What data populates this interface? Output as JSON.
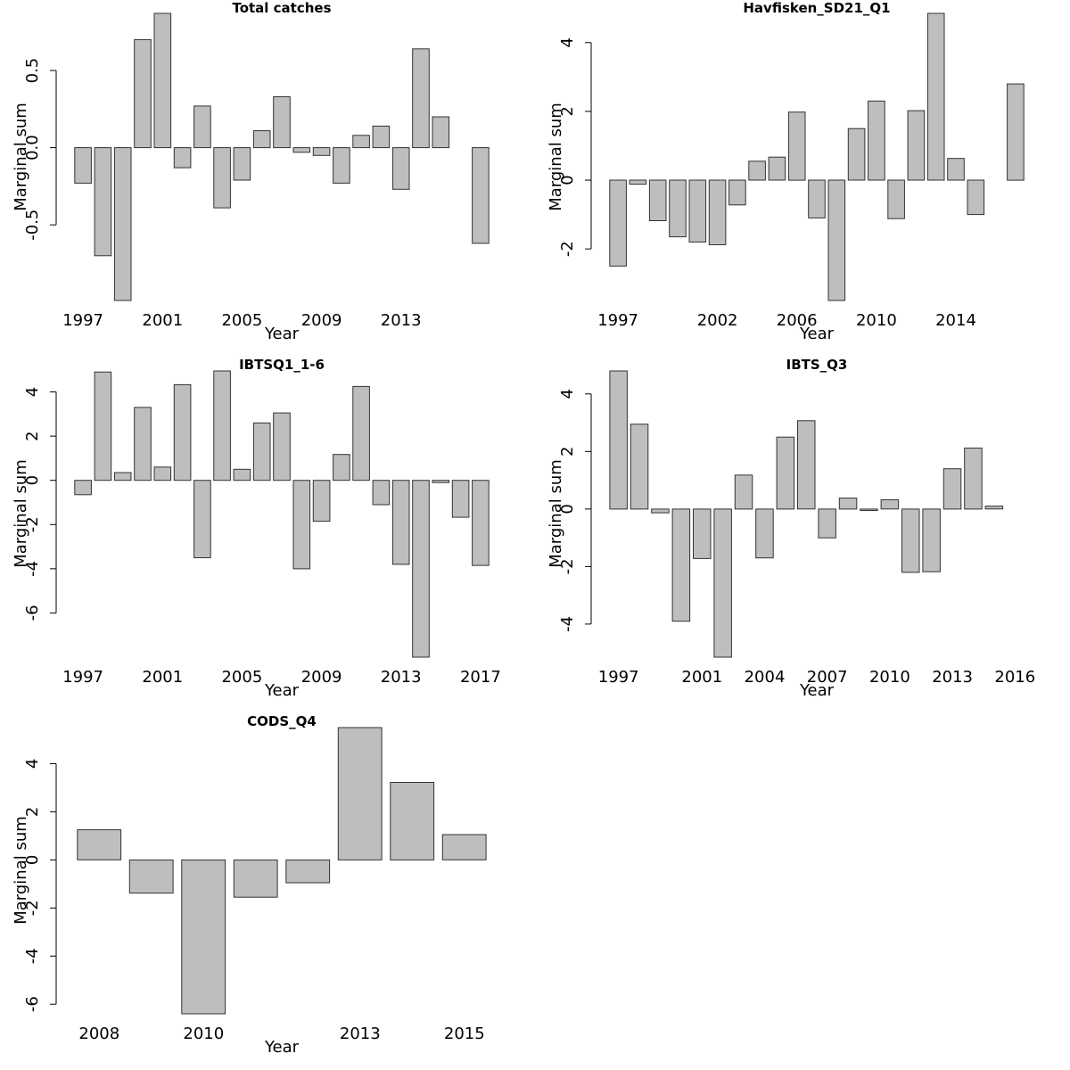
{
  "chart_data": [
    {
      "type": "bar",
      "title": "Total catches",
      "xlabel": "Year",
      "ylabel": "Marginal sum",
      "ylim": [
        -0.99,
        0.87
      ],
      "yticks": [
        -0.5,
        0.0,
        0.5
      ],
      "ytick_labels": [
        "-0.5",
        "0.0",
        "0.5"
      ],
      "xtick_labels": [
        "1997",
        "2001",
        "2005",
        "2009",
        "2013"
      ],
      "categories": [
        "1997",
        "1998",
        "1999",
        "2000",
        "2001",
        "2002",
        "2003",
        "2004",
        "2005",
        "2006",
        "2007",
        "2008",
        "2009",
        "2010",
        "2011",
        "2012",
        "2013",
        "2014",
        "2015",
        "2016",
        "2017"
      ],
      "values": [
        -0.23,
        -0.7,
        -0.99,
        0.7,
        0.87,
        -0.13,
        0.27,
        -0.39,
        -0.21,
        0.11,
        0.33,
        -0.03,
        -0.05,
        -0.23,
        0.08,
        0.14,
        -0.27,
        0.64,
        0.2,
        0.0,
        -0.62
      ],
      "grid": false,
      "legend": "none"
    },
    {
      "type": "bar",
      "title": "Havfisken_SD21_Q1",
      "xlabel": "Year",
      "ylabel": "Marginal sum",
      "ylim": [
        -3.5,
        4.85
      ],
      "yticks": [
        -2,
        0,
        2,
        4
      ],
      "ytick_labels": [
        "-2",
        "0",
        "2",
        "4"
      ],
      "xtick_labels": [
        "1997",
        "2002",
        "2006",
        "2010",
        "2014"
      ],
      "categories": [
        "1997",
        "1998",
        "1999",
        "2000",
        "2001",
        "2002",
        "2003",
        "2004",
        "2005",
        "2006",
        "2007",
        "2008",
        "2009",
        "2010",
        "2011",
        "2012",
        "2013",
        "2014",
        "2015",
        "2016",
        "2017"
      ],
      "values": [
        -2.5,
        -0.12,
        -1.18,
        -1.65,
        -1.8,
        -1.88,
        -0.72,
        0.55,
        0.67,
        1.98,
        -1.1,
        -3.5,
        1.5,
        2.3,
        -1.12,
        2.02,
        4.85,
        0.63,
        -1.0,
        0.0,
        2.8
      ],
      "grid": false,
      "legend": "none"
    },
    {
      "type": "bar",
      "title": "IBTSQ1_1-6",
      "xlabel": "Year",
      "ylabel": "Marginal sum",
      "ylim": [
        -8.0,
        4.95
      ],
      "yticks": [
        -6,
        -4,
        -2,
        0,
        2,
        4
      ],
      "ytick_labels": [
        "-6",
        "-4",
        "-2",
        "0",
        "2",
        "4"
      ],
      "xtick_labels": [
        "1997",
        "2001",
        "2005",
        "2009",
        "2013",
        "2017"
      ],
      "categories": [
        "1997",
        "1998",
        "1999",
        "2000",
        "2001",
        "2002",
        "2003",
        "2004",
        "2005",
        "2006",
        "2007",
        "2008",
        "2009",
        "2010",
        "2011",
        "2012",
        "2013",
        "2014",
        "2015",
        "2016",
        "2017"
      ],
      "values": [
        -0.65,
        4.9,
        0.35,
        3.3,
        0.6,
        4.33,
        -3.5,
        4.95,
        0.5,
        2.6,
        3.05,
        -4.0,
        -1.85,
        1.17,
        4.25,
        -1.1,
        -3.8,
        -8.0,
        -0.1,
        -1.67,
        -3.85
      ],
      "grid": false,
      "legend": "none"
    },
    {
      "type": "bar",
      "title": "IBTS_Q3",
      "xlabel": "Year",
      "ylabel": "Marginal sum",
      "ylim": [
        -5.15,
        4.8
      ],
      "yticks": [
        -4,
        -2,
        0,
        2,
        4
      ],
      "ytick_labels": [
        "-4",
        "-2",
        "0",
        "2",
        "4"
      ],
      "xtick_labels": [
        "1997",
        "2001",
        "2004",
        "2007",
        "2010",
        "2013",
        "2016"
      ],
      "categories": [
        "1997",
        "1998",
        "1999",
        "2000",
        "2001",
        "2002",
        "2003",
        "2004",
        "2005",
        "2006",
        "2007",
        "2008",
        "2009",
        "2010",
        "2011",
        "2012",
        "2013",
        "2014",
        "2015",
        "2016"
      ],
      "values": [
        4.8,
        2.95,
        -0.13,
        -3.9,
        -1.72,
        -5.15,
        1.18,
        -1.7,
        2.5,
        3.07,
        -1.0,
        0.38,
        -0.05,
        0.32,
        -2.2,
        -2.18,
        1.4,
        2.12,
        0.1,
        0.0
      ],
      "grid": false,
      "legend": "none"
    },
    {
      "type": "bar",
      "title": "CODS_Q4",
      "xlabel": "Year",
      "ylabel": "Marginal sum",
      "ylim": [
        -6.4,
        5.5
      ],
      "yticks": [
        -6,
        -4,
        -2,
        0,
        2,
        4
      ],
      "ytick_labels": [
        "-6",
        "-4",
        "-2",
        "0",
        "2",
        "4"
      ],
      "xtick_labels": [
        "2008",
        "2010",
        "2013",
        "2015"
      ],
      "categories": [
        "2008",
        "2009",
        "2010",
        "2011",
        "2012",
        "2013",
        "2014",
        "2015"
      ],
      "values": [
        1.25,
        -1.38,
        -6.4,
        -1.55,
        -0.95,
        5.5,
        3.22,
        1.05
      ],
      "grid": false,
      "legend": "none"
    }
  ]
}
